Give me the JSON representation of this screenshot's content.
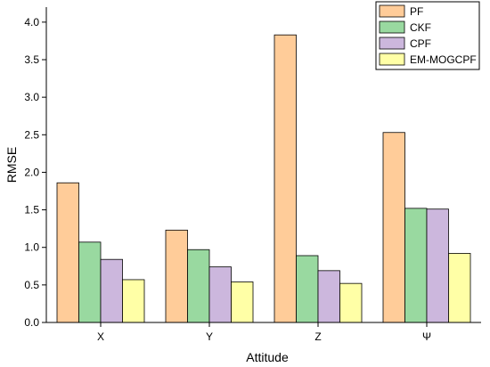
{
  "chart_data": {
    "type": "bar",
    "xlabel": "Attitude",
    "ylabel": "RMSE",
    "categories": [
      "X",
      "Y",
      "Z",
      "Ψ"
    ],
    "ylim": [
      0,
      4.2
    ],
    "yticks": [
      "0.0",
      "0.5",
      "1.0",
      "1.5",
      "2.0",
      "2.5",
      "3.0",
      "3.5",
      "4.0"
    ],
    "legend_position": "top-right",
    "grid": false,
    "series": [
      {
        "name": "PF",
        "color": "#FFCC99",
        "values": [
          1.86,
          1.23,
          3.83,
          2.53
        ]
      },
      {
        "name": "CKF",
        "color": "#99D9A0",
        "values": [
          1.07,
          0.97,
          0.89,
          1.52
        ]
      },
      {
        "name": "CPF",
        "color": "#CCB7DD",
        "values": [
          0.84,
          0.74,
          0.69,
          1.51
        ]
      },
      {
        "name": "EM-MOGCPF",
        "color": "#FFFFA6",
        "values": [
          0.57,
          0.54,
          0.52,
          0.92
        ]
      }
    ]
  }
}
